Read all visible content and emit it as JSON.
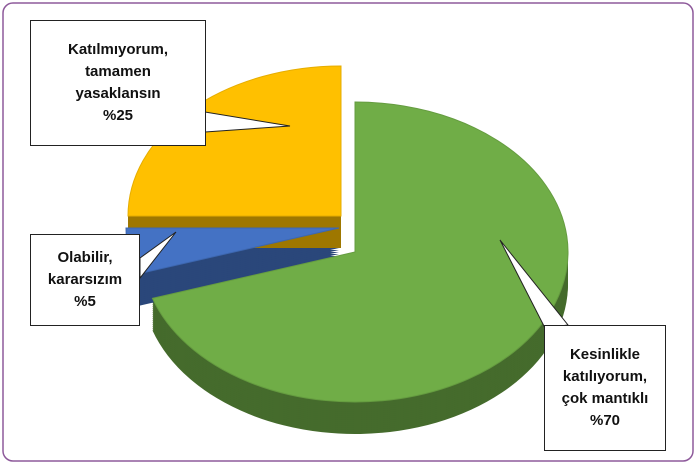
{
  "chart_data": {
    "type": "pie",
    "categories": [
      "Kesinlikle katılıyorum, çok mantıklı",
      "Olabilir, kararsızım",
      "Katılmıyorum, tamamen yasaklansın"
    ],
    "values": [
      70,
      5,
      25
    ],
    "value_labels": [
      "%70",
      "%5",
      "%25"
    ],
    "colors": [
      "#70ad47",
      "#4472c4",
      "#ffc000"
    ]
  }
}
